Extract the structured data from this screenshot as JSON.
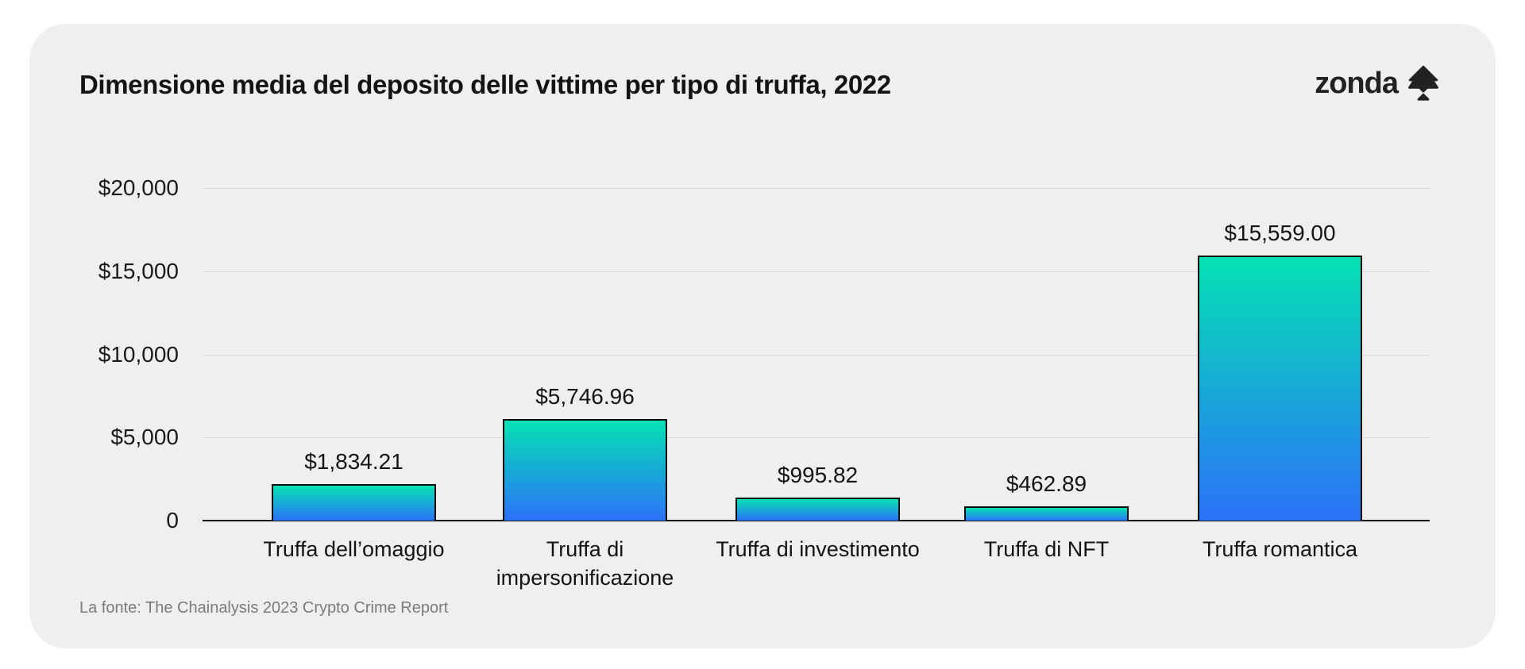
{
  "header": {
    "title": "Dimensione media del deposito delle vittime per tipo di truffa, 2022",
    "logo_text": "zonda",
    "logo_icon": "zonda-spade-arrow-icon"
  },
  "chart_data": {
    "type": "bar",
    "title": "Dimensione media del deposito delle vittime per tipo di truffa, 2022",
    "categories": [
      "Truffa dell’omaggio",
      "Truffa di impersonificazione",
      "Truffa di investimento",
      "Truffa di NFT",
      "Truffa romantica"
    ],
    "values": [
      1834.21,
      5746.96,
      995.82,
      462.89,
      15559.0
    ],
    "value_labels": [
      "$1,834.21",
      "$5,746.96",
      "$995.82",
      "$462.89",
      "$15,559.00"
    ],
    "y_axis": {
      "ticks": [
        "$20,000",
        "$15,000",
        "$10,000",
        "$5,000",
        "0"
      ],
      "tick_values": [
        20000,
        15000,
        10000,
        5000,
        0
      ],
      "min": 0,
      "max": 20000
    },
    "grid": true,
    "legend": false,
    "bar_gradient_top": "#05E2B4",
    "bar_gradient_bottom": "#2B72F8",
    "bar_border_color": "#0B0B0B",
    "source": "La fonte: The Chainalysis 2023 Crypto Crime Report"
  },
  "footer": {
    "source": "La fonte: The Chainalysis 2023 Crypto Crime Report"
  },
  "colors": {
    "page_bg": "#FFFFFF",
    "card_bg": "#EFEFEE",
    "grid_line": "#D8D8D6",
    "axis_line": "#141414",
    "text_primary": "#141414",
    "text_muted": "#7B7B7B"
  }
}
